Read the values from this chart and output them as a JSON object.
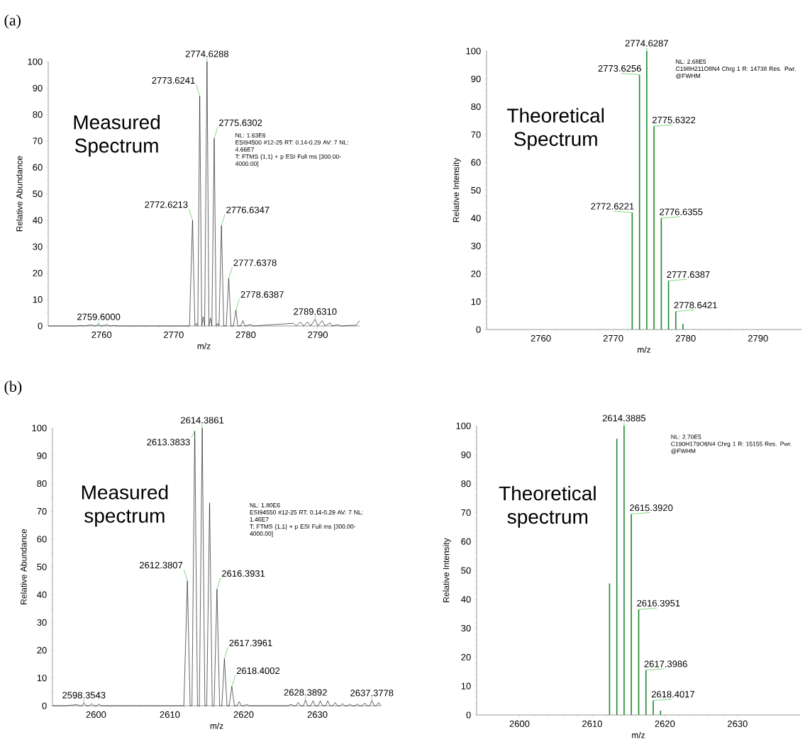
{
  "chart_data": [
    {
      "type": "line",
      "subtitle": "(a)",
      "title": "Measured Spectrum",
      "xlabel": "m/z",
      "ylabel": "Relative Abundance",
      "color": "#000000",
      "x": [
        2752.6,
        2756.5,
        2757,
        2757.5,
        2758.6,
        2759,
        2759.6,
        2760,
        2760.7,
        2761.2,
        2761.8,
        2762.3,
        2772.2,
        2772.62,
        2772.95,
        2773.2,
        2773.35,
        2773.62,
        2773.9,
        2774.1,
        2774.3,
        2774.63,
        2774.9,
        2775.1,
        2775.3,
        2775.63,
        2775.9,
        2776.1,
        2776.3,
        2776.63,
        2776.95,
        2777.3,
        2777.64,
        2777.95,
        2778.3,
        2778.64,
        2778.9,
        2779.3,
        2779.6,
        2779.9,
        2780.7,
        2781,
        2786.6,
        2787,
        2787.6,
        2788,
        2788.6,
        2789,
        2789.63,
        2790,
        2790.6,
        2791,
        2791.7,
        2792,
        2792.8,
        2793.1,
        2795.3,
        2795.8
      ],
      "values": [
        0,
        0,
        0.2,
        0,
        0.4,
        0,
        0.5,
        0,
        0.4,
        0,
        0.2,
        0,
        0,
        40,
        0,
        1,
        0,
        87,
        0,
        3.5,
        0,
        100,
        0,
        3,
        0,
        71,
        0,
        1,
        0,
        38,
        0,
        0,
        18,
        0,
        0,
        6,
        0,
        0,
        2,
        0,
        0.5,
        0,
        1,
        0,
        1.5,
        0,
        1.5,
        0,
        2.5,
        0,
        2,
        0,
        1.2,
        0,
        0.5,
        0,
        0.3,
        2
      ],
      "xlim": [
        2752.6,
        2795.8
      ],
      "ylim": [
        0,
        100
      ],
      "xticks": [
        2760,
        2770,
        2780,
        2790
      ],
      "yticks": [
        0,
        10,
        20,
        30,
        40,
        50,
        60,
        70,
        80,
        90,
        100
      ],
      "annotations": [
        "NL: 1.63E6",
        "ESI94500 #12-25  RT: 0.14-0.29 AV: 7 NL: 4.66E7",
        "T: FTMS {1,1} + p ESI Full ms [300.00-4000.00]",
        {
          "text": "2759.6000",
          "x": 2759.6,
          "y": 0.5
        },
        {
          "text": "2772.6213",
          "x": 2772.6213,
          "y": 40
        },
        {
          "text": "2773.6241",
          "x": 2773.6241,
          "y": 87
        },
        {
          "text": "2774.6288",
          "x": 2774.6288,
          "y": 100
        },
        {
          "text": "2775.6302",
          "x": 2775.6302,
          "y": 71
        },
        {
          "text": "2776.6347",
          "x": 2776.6347,
          "y": 38
        },
        {
          "text": "2777.6378",
          "x": 2777.6378,
          "y": 18
        },
        {
          "text": "2778.6387",
          "x": 2778.6387,
          "y": 6
        },
        {
          "text": "2789.6310",
          "x": 2789.631,
          "y": 2.5
        }
      ]
    },
    {
      "type": "bar",
      "title": "Theoretical Spectrum",
      "xlabel": "m/z",
      "ylabel": "Relative Intensity",
      "color": "#1a8a2a",
      "x": [
        2772.62,
        2773.63,
        2774.63,
        2775.63,
        2776.64,
        2777.64,
        2778.64,
        2779.64
      ],
      "values": [
        42,
        91.5,
        100,
        73,
        40,
        17.5,
        6.5,
        2
      ],
      "xlim": [
        2752.5,
        2796
      ],
      "ylim": [
        0,
        100
      ],
      "xticks": [
        2760,
        2770,
        2780,
        2790
      ],
      "yticks": [
        0,
        10,
        20,
        30,
        40,
        50,
        60,
        70,
        80,
        90,
        100
      ],
      "annotations": [
        "NL: 2.68E5",
        "C198H211O8N4   Chrg 1 R: 14738 Res. Pwr. @FWHM",
        {
          "text": "2772.6221",
          "x": 2772.6221,
          "y": 42
        },
        {
          "text": "2773.6256",
          "x": 2773.6256,
          "y": 91.5
        },
        {
          "text": "2774.6287",
          "x": 2774.6287,
          "y": 100
        },
        {
          "text": "2775.6322",
          "x": 2775.6322,
          "y": 73
        },
        {
          "text": "2776.6355",
          "x": 2776.6355,
          "y": 40
        },
        {
          "text": "2777.6387",
          "x": 2777.6387,
          "y": 17.5
        },
        {
          "text": "2778.6421",
          "x": 2778.6421,
          "y": 6.5
        }
      ]
    },
    {
      "type": "line",
      "subtitle": "(b)",
      "title": "Measured spectrum",
      "xlabel": "m/z",
      "ylabel": "Relative Abundance",
      "color": "#000000",
      "x": [
        2594.1,
        2596,
        2597.4,
        2597.8,
        2598.1,
        2598.35,
        2598.7,
        2599.1,
        2599.4,
        2599.7,
        2600.1,
        2600.4,
        2600.7,
        2611.9,
        2612.38,
        2612.75,
        2613.0,
        2613.38,
        2613.75,
        2614.0,
        2614.39,
        2614.75,
        2615.0,
        2615.39,
        2615.75,
        2616.0,
        2616.39,
        2616.75,
        2617.05,
        2617.4,
        2617.75,
        2618.05,
        2618.4,
        2618.75,
        2619.1,
        2619.4,
        2619.7,
        2620.1,
        2620.4,
        2620.7,
        2626.0,
        2626.4,
        2626.8,
        2627.1,
        2627.4,
        2627.7,
        2628.1,
        2628.39,
        2628.7,
        2629.1,
        2629.4,
        2629.7,
        2630.1,
        2630.4,
        2630.7,
        2631.1,
        2631.4,
        2631.7,
        2632.1,
        2632.4,
        2632.7,
        2633.1,
        2633.4,
        2633.7,
        2634.1,
        2634.4,
        2634.7,
        2635.1,
        2635.4,
        2635.7,
        2636.1,
        2636.4,
        2636.7,
        2637.1,
        2637.38,
        2637.7,
        2638.0,
        2638.3,
        2638.6
      ],
      "values": [
        0,
        0,
        0.4,
        0,
        0,
        1,
        0,
        0,
        0.8,
        0,
        0,
        0.6,
        0,
        0,
        45,
        0,
        0,
        99,
        0,
        0,
        100,
        0,
        0,
        73,
        0,
        0,
        42,
        0,
        0,
        17,
        0,
        0,
        7,
        0,
        0,
        1.5,
        0,
        0,
        0.5,
        0,
        0,
        0.5,
        0,
        0,
        1.2,
        0,
        0,
        2,
        0,
        0,
        1.8,
        0,
        0,
        1.8,
        0,
        0,
        1.8,
        0,
        0,
        1.2,
        0,
        0,
        0.8,
        0,
        0,
        0.6,
        0,
        0,
        0.6,
        0,
        0,
        1,
        0,
        0,
        1.8,
        0,
        0,
        1.2,
        0
      ],
      "xlim": [
        2594.1,
        2638.6
      ],
      "ylim": [
        0,
        100
      ],
      "xticks": [
        2600,
        2610,
        2620,
        2630
      ],
      "yticks": [
        0,
        10,
        20,
        30,
        40,
        50,
        60,
        70,
        80,
        90,
        100
      ],
      "annotations": [
        "NL: 1.80E6",
        "ESI94550 #12-25  RT: 0.14-0.29 AV: 7 NL: 1.46E7",
        "T: FTMS {1,1} + p ESI Full ms [300.00-4000.00]",
        {
          "text": "2598.3543",
          "x": 2598.3543,
          "y": 1
        },
        {
          "text": "2612.3807",
          "x": 2612.3807,
          "y": 45
        },
        {
          "text": "2613.3833",
          "x": 2613.3833,
          "y": 99
        },
        {
          "text": "2614.3861",
          "x": 2614.3861,
          "y": 100
        },
        {
          "text": "2616.3931",
          "x": 2616.3931,
          "y": 42
        },
        {
          "text": "2617.3961",
          "x": 2617.3961,
          "y": 17
        },
        {
          "text": "2618.4002",
          "x": 2618.4002,
          "y": 7
        },
        {
          "text": "2628.3892",
          "x": 2628.3892,
          "y": 2
        },
        {
          "text": "2637.3778",
          "x": 2637.3778,
          "y": 1.8
        }
      ]
    },
    {
      "type": "bar",
      "title": "Theoretical spectrum",
      "xlabel": "m/z",
      "ylabel": "Relative Intensity",
      "color": "#1a8a2a",
      "x": [
        2612.39,
        2613.39,
        2614.39,
        2615.39,
        2616.4,
        2617.4,
        2618.4,
        2619.4
      ],
      "values": [
        45.5,
        95.5,
        100,
        69.5,
        36.5,
        15.5,
        5,
        1.5
      ],
      "xlim": [
        2594.1,
        2638.6
      ],
      "ylim": [
        0,
        100
      ],
      "xticks": [
        2600,
        2610,
        2620,
        2630
      ],
      "yticks": [
        0,
        10,
        20,
        30,
        40,
        50,
        60,
        70,
        80,
        90,
        100
      ],
      "annotations": [
        "NL: 2.70E5",
        "C190H179O6N4   Chrg 1 R: 15155 Res. Pwr. @FWHM",
        {
          "text": "2614.3885",
          "x": 2614.3885,
          "y": 100
        },
        {
          "text": "2615.3920",
          "x": 2615.392,
          "y": 69.5
        },
        {
          "text": "2616.3951",
          "x": 2616.3951,
          "y": 36.5
        },
        {
          "text": "2617.3986",
          "x": 2617.3986,
          "y": 15.5
        },
        {
          "text": "2618.4017",
          "x": 2618.4017,
          "y": 5
        }
      ]
    }
  ]
}
